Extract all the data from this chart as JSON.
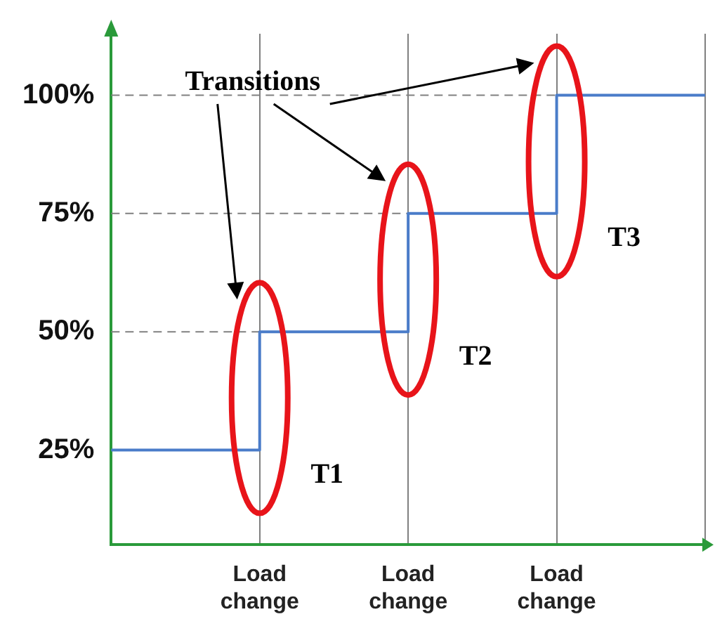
{
  "chart_data": {
    "type": "step",
    "categories": [
      null,
      "Load change",
      "Load change",
      "Load change",
      null
    ],
    "series": [
      {
        "color": "#4a7cc9",
        "values": [
          25,
          50,
          75,
          100,
          100
        ]
      }
    ],
    "ylim": [
      5,
      113
    ],
    "yticks": [
      {
        "value": 25,
        "label": "25%"
      },
      {
        "value": 50,
        "label": "50%"
      },
      {
        "value": 75,
        "label": "75%"
      },
      {
        "value": 100,
        "label": "100%"
      }
    ],
    "ref_lines": [
      {
        "axis": "y",
        "value": 50,
        "color": "#808080",
        "line_style": "dashed"
      },
      {
        "axis": "y",
        "value": 75,
        "color": "#808080",
        "line_style": "dashed"
      },
      {
        "axis": "y",
        "value": 100,
        "color": "#808080",
        "line_style": "dashed"
      }
    ],
    "annotations": [
      "Transitions",
      "T1",
      "T2",
      "T3"
    ],
    "grid": "x",
    "legend": false,
    "marker": "none",
    "line_style": "solid"
  }
}
